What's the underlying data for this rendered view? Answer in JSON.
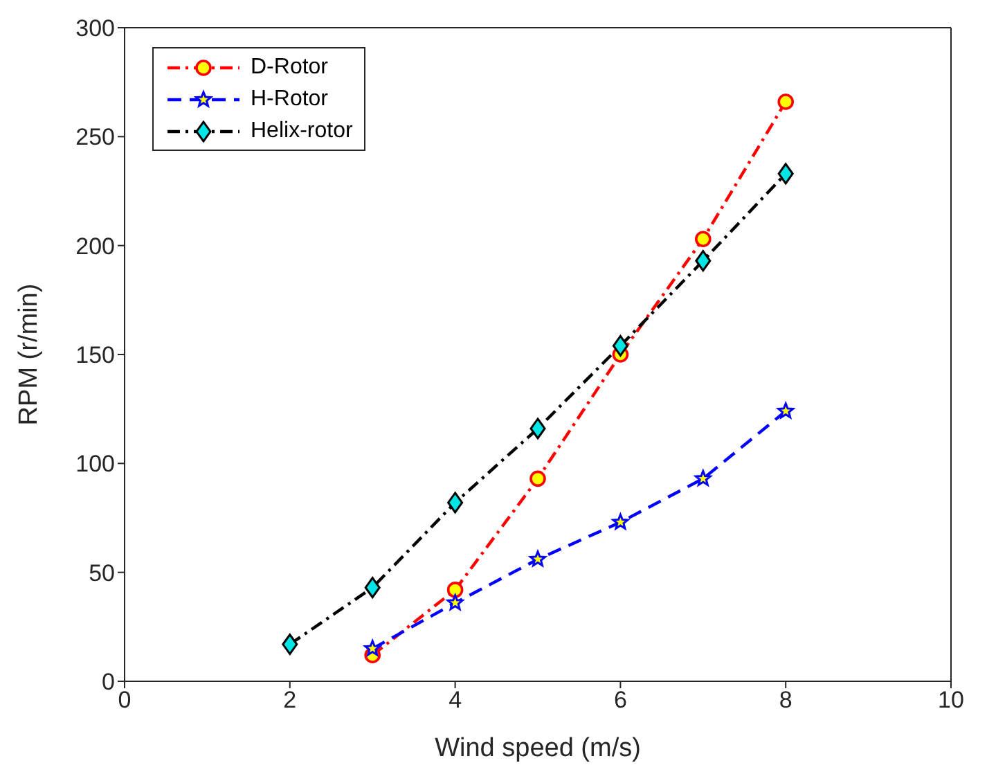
{
  "chart_data": {
    "type": "line",
    "xlabel": "Wind speed (m/s)",
    "ylabel": "RPM (r/min)",
    "x": [
      2,
      3,
      4,
      5,
      6,
      7,
      8
    ],
    "series": [
      {
        "name": "D-Rotor",
        "color": "#ff0000",
        "marker": "circle",
        "line_style": "dashdot",
        "values": [
          null,
          12,
          42,
          93,
          150,
          203,
          266
        ]
      },
      {
        "name": "H-Rotor",
        "color": "#0000ff",
        "marker": "star",
        "line_style": "dashed",
        "values": [
          null,
          15,
          36,
          56,
          73,
          93,
          124
        ]
      },
      {
        "name": "Helix-rotor",
        "color": "#000000",
        "marker": "diamond",
        "line_style": "dashdot",
        "values": [
          17,
          43,
          82,
          116,
          154,
          193,
          233
        ]
      }
    ],
    "xlim": [
      0,
      10
    ],
    "xticks": [
      0,
      2,
      4,
      6,
      8,
      10
    ],
    "ylim": [
      0,
      300
    ],
    "yticks": [
      0,
      50,
      100,
      150,
      200,
      250,
      300
    ],
    "grid": false,
    "legend": "top left"
  }
}
